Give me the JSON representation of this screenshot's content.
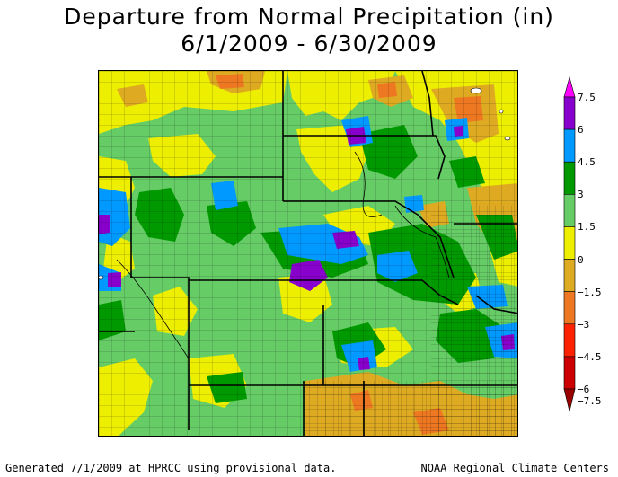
{
  "title": {
    "line1": "Departure from Normal Precipitation (in)",
    "line2": "6/1/2009 - 6/30/2009"
  },
  "legend": {
    "items": [
      {
        "label": "7.5",
        "color": "#ff00ff"
      },
      {
        "label": "6",
        "color": "#8800cc"
      },
      {
        "label": "4.5",
        "color": "#0099ff"
      },
      {
        "label": "3",
        "color": "#009900"
      },
      {
        "label": "1.5",
        "color": "#66cc66"
      },
      {
        "label": "0",
        "color": "#eeee00"
      },
      {
        "label": "−1.5",
        "color": "#ddaa22"
      },
      {
        "label": "−3",
        "color": "#ee7722"
      },
      {
        "label": "−4.5",
        "color": "#ff2200"
      },
      {
        "label": "−6",
        "color": "#cc0000"
      },
      {
        "label": "−7.5",
        "color": "#990000"
      }
    ]
  },
  "footer": {
    "left": "Generated 7/1/2009 at HPRCC using provisional data.",
    "right": "NOAA Regional Climate Centers"
  }
}
